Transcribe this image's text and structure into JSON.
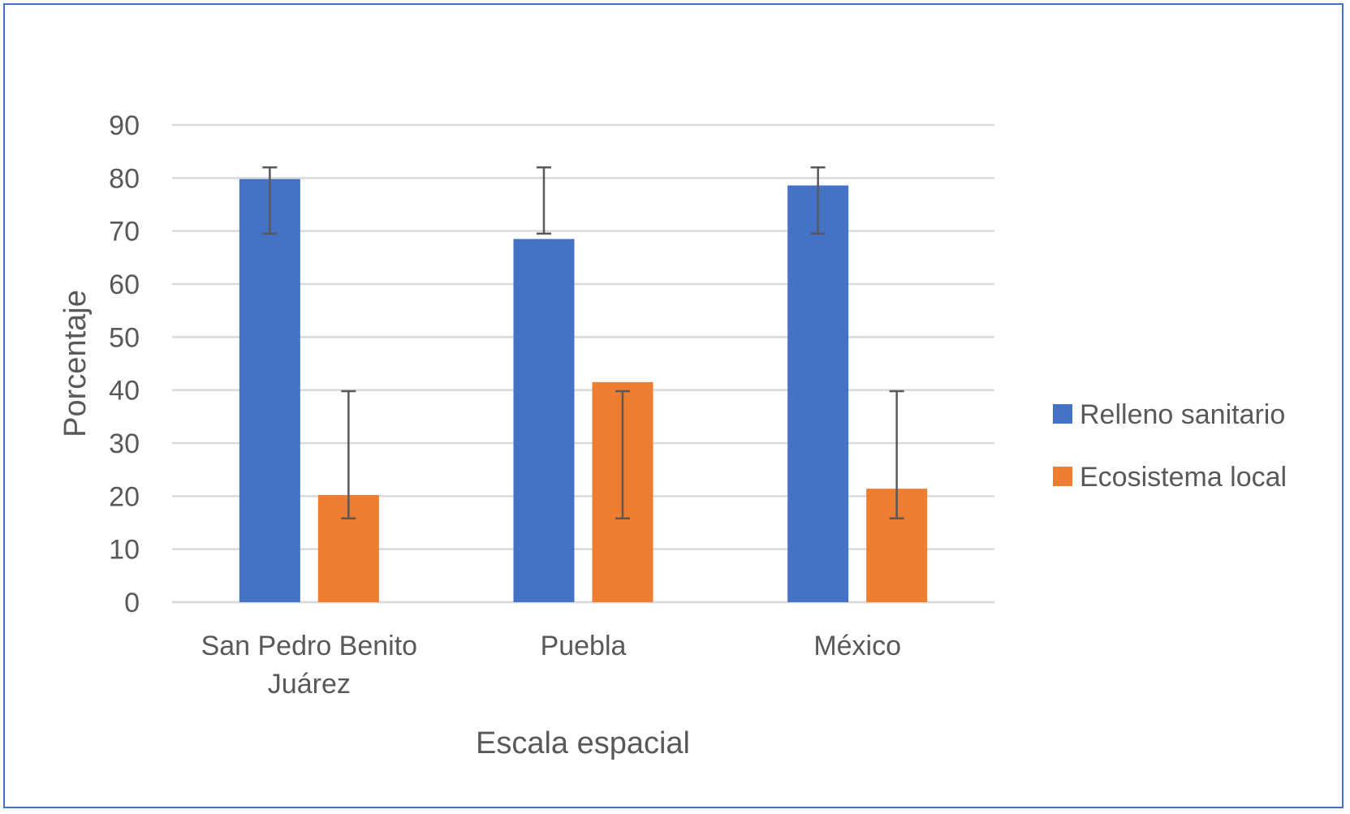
{
  "chart_data": {
    "type": "bar",
    "title": "",
    "xlabel": "Escala espacial",
    "ylabel": "Porcentaje",
    "ylim": [
      0,
      90
    ],
    "yticks": [
      0,
      10,
      20,
      30,
      40,
      50,
      60,
      70,
      80,
      90
    ],
    "grid": true,
    "legend_position": "right",
    "categories": [
      [
        "San Pedro Benito",
        "Juárez"
      ],
      [
        "Puebla"
      ],
      [
        "México"
      ]
    ],
    "series": [
      {
        "name": "Relleno sanitario",
        "color": "#4472c4",
        "values": [
          79.8,
          68.5,
          78.6
        ],
        "error_low": [
          69.5,
          69.5,
          69.5
        ],
        "error_high": [
          82,
          82,
          82
        ]
      },
      {
        "name": "Ecosistema local",
        "color": "#ed7d31",
        "values": [
          20.2,
          41.5,
          21.4
        ],
        "error_low": [
          15.8,
          15.8,
          15.8
        ],
        "error_high": [
          39.8,
          39.8,
          39.8
        ]
      }
    ]
  }
}
